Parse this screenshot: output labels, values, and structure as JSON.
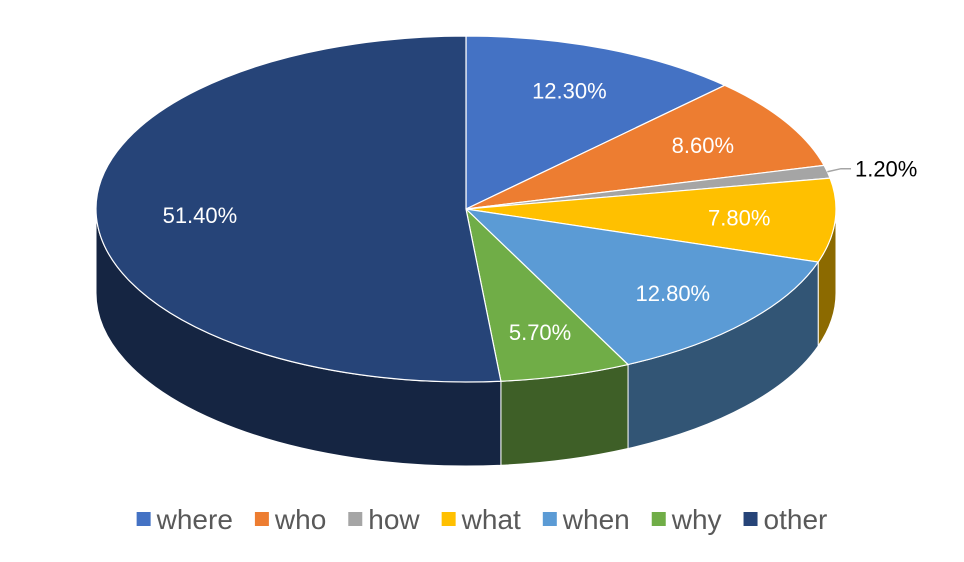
{
  "chart_data": {
    "type": "pie",
    "style": "3d",
    "title": "",
    "categories": [
      "where",
      "who",
      "how",
      "what",
      "when",
      "why",
      "other"
    ],
    "values": [
      12.3,
      8.6,
      1.2,
      7.8,
      12.8,
      5.7,
      51.4
    ],
    "value_labels": [
      "12.30%",
      "8.60%",
      "1.20%",
      "7.80%",
      "12.80%",
      "5.70%",
      "51.40%"
    ],
    "colors": [
      "#4472C4",
      "#ED7D31",
      "#A5A5A5",
      "#FFC000",
      "#5B9BD5",
      "#70AD47",
      "#264478"
    ],
    "label_colors": [
      "#ffffff",
      "#ffffff",
      "#000000",
      "#ffffff",
      "#ffffff",
      "#ffffff",
      "#ffffff"
    ],
    "start_angle_deg": 0,
    "direction": "clockwise",
    "legend_position": "bottom"
  }
}
